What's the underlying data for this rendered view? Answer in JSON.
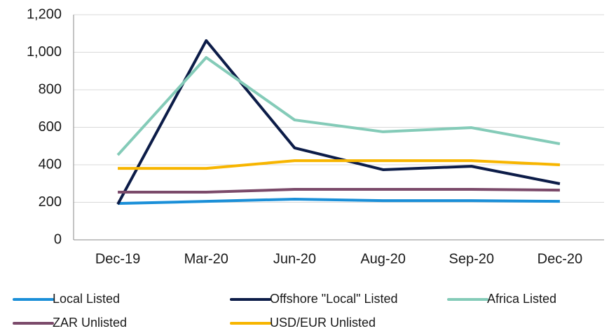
{
  "chart_data": {
    "type": "line",
    "categories": [
      "Dec-19",
      "Mar-20",
      "Jun-20",
      "Aug-20",
      "Sep-20",
      "Dec-20"
    ],
    "series": [
      {
        "name": "Local Listed",
        "color": "#1a8fd8",
        "values": [
          194,
          205,
          217,
          209,
          209,
          205
        ]
      },
      {
        "name": "Offshore \"Local\" Listed",
        "color": "#0c1c48",
        "values": [
          190,
          1062,
          490,
          374,
          392,
          299
        ]
      },
      {
        "name": "Africa Listed",
        "color": "#84cbb8",
        "values": [
          452,
          972,
          639,
          576,
          598,
          512
        ]
      },
      {
        "name": "ZAR Unlisted",
        "color": "#7b4a6a",
        "values": [
          254,
          254,
          269,
          269,
          269,
          265
        ]
      },
      {
        "name": "USD/EUR Unlisted",
        "color": "#f7b500",
        "values": [
          381,
          381,
          422,
          422,
          422,
          400
        ]
      }
    ],
    "ylim": [
      0,
      1200
    ],
    "yticks": [
      0,
      200,
      400,
      600,
      800,
      {
        "value": 1000,
        "label": "1,000"
      },
      {
        "value": 1200,
        "label": "1,200"
      }
    ],
    "grid": true
  }
}
